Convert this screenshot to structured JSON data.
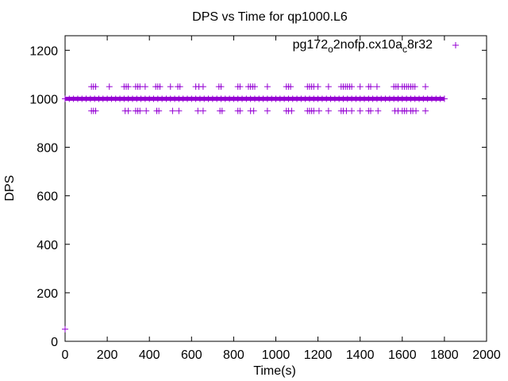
{
  "chart_data": {
    "type": "scatter",
    "title": "DPS vs Time for qp1000.L6",
    "xlabel": "Time(s)",
    "ylabel": "DPS",
    "xlim": [
      0,
      2000
    ],
    "ylim": [
      0,
      1260
    ],
    "x_ticks": [
      0,
      200,
      400,
      600,
      800,
      1000,
      1200,
      1400,
      1600,
      1800,
      2000
    ],
    "y_ticks": [
      0,
      200,
      400,
      600,
      800,
      1000,
      1200
    ],
    "grid": false,
    "legend_position": "top-right",
    "marker": "plus",
    "series": [
      {
        "name_parts": [
          "pg172",
          "o",
          "2nofp.cx10a",
          "c",
          "8r32"
        ],
        "color": "#9400d3",
        "baseline": {
          "x_from": 0,
          "x_to": 1800,
          "y": 1000
        },
        "points": [
          {
            "x": 0,
            "y": 50
          },
          {
            "x": 125,
            "y": 1050
          },
          {
            "x": 135,
            "y": 1050
          },
          {
            "x": 145,
            "y": 1050
          },
          {
            "x": 125,
            "y": 950
          },
          {
            "x": 135,
            "y": 950
          },
          {
            "x": 145,
            "y": 950
          },
          {
            "x": 210,
            "y": 1050
          },
          {
            "x": 280,
            "y": 1050
          },
          {
            "x": 290,
            "y": 1050
          },
          {
            "x": 300,
            "y": 1050
          },
          {
            "x": 285,
            "y": 950
          },
          {
            "x": 300,
            "y": 950
          },
          {
            "x": 335,
            "y": 1050
          },
          {
            "x": 345,
            "y": 1050
          },
          {
            "x": 355,
            "y": 1050
          },
          {
            "x": 335,
            "y": 950
          },
          {
            "x": 345,
            "y": 950
          },
          {
            "x": 355,
            "y": 950
          },
          {
            "x": 380,
            "y": 1050
          },
          {
            "x": 385,
            "y": 950
          },
          {
            "x": 430,
            "y": 1050
          },
          {
            "x": 440,
            "y": 1050
          },
          {
            "x": 450,
            "y": 1050
          },
          {
            "x": 435,
            "y": 950
          },
          {
            "x": 445,
            "y": 950
          },
          {
            "x": 500,
            "y": 1050
          },
          {
            "x": 510,
            "y": 950
          },
          {
            "x": 535,
            "y": 1050
          },
          {
            "x": 545,
            "y": 1050
          },
          {
            "x": 540,
            "y": 950
          },
          {
            "x": 620,
            "y": 1050
          },
          {
            "x": 635,
            "y": 1050
          },
          {
            "x": 655,
            "y": 1050
          },
          {
            "x": 630,
            "y": 950
          },
          {
            "x": 655,
            "y": 950
          },
          {
            "x": 730,
            "y": 1050
          },
          {
            "x": 740,
            "y": 1050
          },
          {
            "x": 735,
            "y": 950
          },
          {
            "x": 745,
            "y": 950
          },
          {
            "x": 820,
            "y": 1050
          },
          {
            "x": 830,
            "y": 1050
          },
          {
            "x": 820,
            "y": 950
          },
          {
            "x": 830,
            "y": 950
          },
          {
            "x": 870,
            "y": 1050
          },
          {
            "x": 880,
            "y": 1050
          },
          {
            "x": 890,
            "y": 1050
          },
          {
            "x": 900,
            "y": 1050
          },
          {
            "x": 880,
            "y": 950
          },
          {
            "x": 895,
            "y": 950
          },
          {
            "x": 960,
            "y": 1050
          },
          {
            "x": 960,
            "y": 950
          },
          {
            "x": 1050,
            "y": 1050
          },
          {
            "x": 1060,
            "y": 1050
          },
          {
            "x": 1070,
            "y": 1050
          },
          {
            "x": 1050,
            "y": 950
          },
          {
            "x": 1060,
            "y": 950
          },
          {
            "x": 1075,
            "y": 950
          },
          {
            "x": 1150,
            "y": 1050
          },
          {
            "x": 1160,
            "y": 1050
          },
          {
            "x": 1170,
            "y": 1050
          },
          {
            "x": 1180,
            "y": 1050
          },
          {
            "x": 1150,
            "y": 950
          },
          {
            "x": 1160,
            "y": 950
          },
          {
            "x": 1170,
            "y": 950
          },
          {
            "x": 1180,
            "y": 950
          },
          {
            "x": 1200,
            "y": 1050
          },
          {
            "x": 1205,
            "y": 950
          },
          {
            "x": 1250,
            "y": 1050
          },
          {
            "x": 1250,
            "y": 950
          },
          {
            "x": 1310,
            "y": 1050
          },
          {
            "x": 1320,
            "y": 1050
          },
          {
            "x": 1330,
            "y": 1050
          },
          {
            "x": 1340,
            "y": 1050
          },
          {
            "x": 1310,
            "y": 950
          },
          {
            "x": 1320,
            "y": 950
          },
          {
            "x": 1335,
            "y": 950
          },
          {
            "x": 1350,
            "y": 1050
          },
          {
            "x": 1360,
            "y": 1050
          },
          {
            "x": 1360,
            "y": 950
          },
          {
            "x": 1400,
            "y": 1050
          },
          {
            "x": 1400,
            "y": 950
          },
          {
            "x": 1440,
            "y": 1050
          },
          {
            "x": 1450,
            "y": 1050
          },
          {
            "x": 1440,
            "y": 950
          },
          {
            "x": 1450,
            "y": 950
          },
          {
            "x": 1480,
            "y": 1050
          },
          {
            "x": 1485,
            "y": 950
          },
          {
            "x": 1560,
            "y": 1050
          },
          {
            "x": 1570,
            "y": 1050
          },
          {
            "x": 1580,
            "y": 1050
          },
          {
            "x": 1565,
            "y": 950
          },
          {
            "x": 1580,
            "y": 950
          },
          {
            "x": 1600,
            "y": 1050
          },
          {
            "x": 1610,
            "y": 1050
          },
          {
            "x": 1620,
            "y": 1050
          },
          {
            "x": 1630,
            "y": 1050
          },
          {
            "x": 1640,
            "y": 1050
          },
          {
            "x": 1600,
            "y": 950
          },
          {
            "x": 1610,
            "y": 950
          },
          {
            "x": 1620,
            "y": 950
          },
          {
            "x": 1640,
            "y": 950
          },
          {
            "x": 1650,
            "y": 1050
          },
          {
            "x": 1660,
            "y": 1050
          },
          {
            "x": 1650,
            "y": 950
          },
          {
            "x": 1665,
            "y": 950
          },
          {
            "x": 1710,
            "y": 1050
          },
          {
            "x": 1710,
            "y": 950
          }
        ]
      }
    ]
  }
}
